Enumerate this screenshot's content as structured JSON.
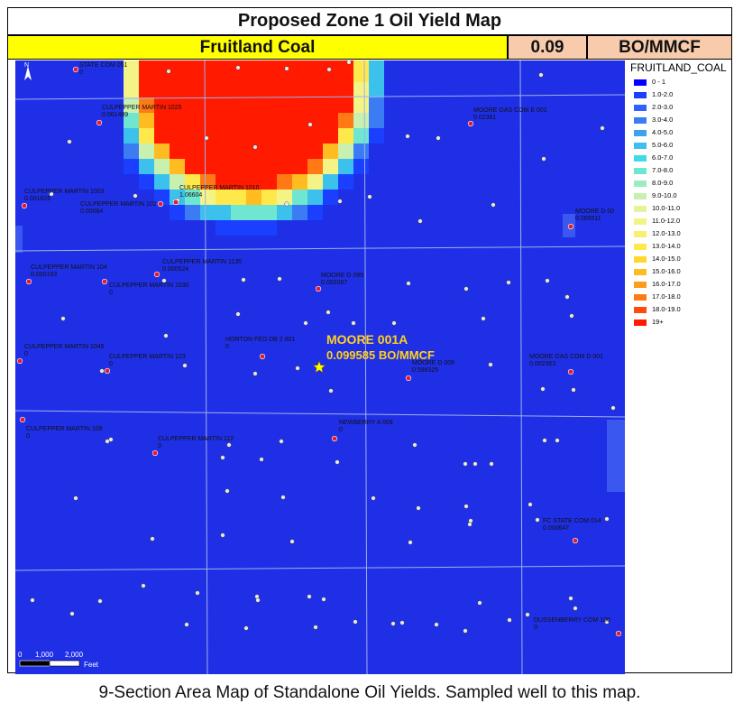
{
  "title": "Proposed Zone 1 Oil Yield Map",
  "header": {
    "formation": "Fruitland Coal",
    "value": "0.09",
    "unit": "BO/MMCF"
  },
  "colors": {
    "map_base": "#1f2fe6",
    "formation_bg": "#ffff00",
    "value_bg": "#f8cbad",
    "well_red": "#e8182c",
    "star": "#ffff00"
  },
  "legend": {
    "title": "FRUITLAND_COAL",
    "items": [
      {
        "label": "0 - 1",
        "color": "#0000ff"
      },
      {
        "label": "1.0-2.0",
        "color": "#1a3fff"
      },
      {
        "label": "2.0-3.0",
        "color": "#3060ff"
      },
      {
        "label": "3.0-4.0",
        "color": "#3b7cf5"
      },
      {
        "label": "4.0-5.0",
        "color": "#3ea0f0"
      },
      {
        "label": "5.0-6.0",
        "color": "#3cc0ec"
      },
      {
        "label": "6.0-7.0",
        "color": "#40dce6"
      },
      {
        "label": "7.0-8.0",
        "color": "#6ee6d0"
      },
      {
        "label": "8.0-9.0",
        "color": "#9cecc0"
      },
      {
        "label": "9.0-10.0",
        "color": "#c8f0ae"
      },
      {
        "label": "10.0-11.0",
        "color": "#e4f49a"
      },
      {
        "label": "11.0-12.0",
        "color": "#f4f486"
      },
      {
        "label": "12.0-13.0",
        "color": "#f8f070"
      },
      {
        "label": "13.0-14.0",
        "color": "#ffe84a"
      },
      {
        "label": "14.0-15.0",
        "color": "#ffd82e"
      },
      {
        "label": "15.0-16.0",
        "color": "#ffbc20"
      },
      {
        "label": "16.0-17.0",
        "color": "#ff9c1a"
      },
      {
        "label": "17.0-18.0",
        "color": "#ff7a14"
      },
      {
        "label": "18.0-19.0",
        "color": "#ff4c0e"
      },
      {
        "label": "19+",
        "color": "#ff1a00"
      }
    ]
  },
  "map": {
    "north_label": "N",
    "highlight": {
      "name": "MOORE 001A",
      "value": "0.099585 BO/MMCF"
    },
    "scale_bar": {
      "labels": [
        "0",
        "1,000",
        "2,000"
      ],
      "unit": "Feet"
    },
    "wells": [
      {
        "name": "STATE COM 051",
        "value": "0"
      },
      {
        "name": "CULPEPPER MARTIN 1025",
        "value": "0.061489"
      },
      {
        "name": "MOORE GAS COM E 001",
        "value": "0.02381"
      },
      {
        "name": "CULPEPPER MARTIN 1010",
        "value": "1.06604"
      },
      {
        "name": "CULPEPPER MARTIN 1003",
        "value": "0.001626"
      },
      {
        "name": "CULPEPPER MARTIN 102",
        "value": "0.00084"
      },
      {
        "name": "MOORE D 00",
        "value": "0.065511"
      },
      {
        "name": "CULPEPPER MARTIN 104",
        "value": "0.000163"
      },
      {
        "name": "CULPEPPER MARTIN 1135",
        "value": "0.000524"
      },
      {
        "name": "CULPEPPER MARTIN 1030",
        "value": "0"
      },
      {
        "name": "MOORE D 099",
        "value": "0.002097"
      },
      {
        "name": "CULPEPPER MARTIN 1045",
        "value": "0"
      },
      {
        "name": "HORTON FED DB 2 001",
        "value": "0"
      },
      {
        "name": "CULPEPPER MARTIN 123",
        "value": "0"
      },
      {
        "name": "MOORE D 009",
        "value": "0.598325"
      },
      {
        "name": "MOORE GAS COM D 001",
        "value": "0.002363"
      },
      {
        "name": "NEWBERRY A 009",
        "value": "0"
      },
      {
        "name": "CULPEPPER MARTIN 108",
        "value": "0"
      },
      {
        "name": "CULPEPPER MARTIN 112",
        "value": "0"
      },
      {
        "name": "FC STATE COM 014",
        "value": "0.000647"
      },
      {
        "name": "DUSSENBERRY COM 100",
        "value": "0"
      }
    ]
  },
  "caption": "9-Section Area Map of Standalone Oil Yields. Sampled well to this map."
}
